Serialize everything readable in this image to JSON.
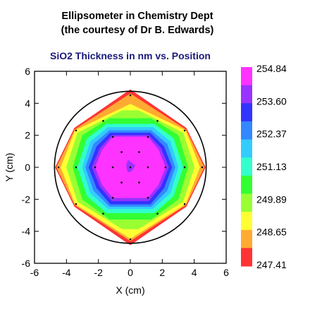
{
  "title_line1": "Ellipsometer in Chemistry Dept",
  "title_line2": "(the courtesy of Dr B. Edwards)",
  "subtitle": "SiO2 Thickness in nm vs. Position",
  "chart_data": {
    "type": "heatmap",
    "title": "Ellipsometer in Chemistry Dept (the courtesy of Dr B. Edwards)",
    "subtitle": "SiO2 Thickness in nm vs. Position",
    "xlabel": "X (cm)",
    "ylabel": "Y (cm)",
    "xlim": [
      -6,
      6
    ],
    "ylim": [
      -6,
      6
    ],
    "x_ticks": [
      "-6",
      "-4",
      "-2",
      "0",
      "2",
      "4",
      "6"
    ],
    "y_ticks": [
      "6",
      "4",
      "2",
      "0",
      "-2",
      "-4",
      "-6"
    ],
    "colorbar_ticks": [
      "254.84",
      "253.60",
      "252.37",
      "251.13",
      "249.89",
      "248.65",
      "247.41"
    ],
    "colorbar_colors": [
      "#ff33ff",
      "#9933ff",
      "#3333ff",
      "#3388ff",
      "#33ccff",
      "#33ffcc",
      "#33ff33",
      "#99ff33",
      "#ffff33",
      "#ffaa33",
      "#ff3333"
    ],
    "wafer_radius": 4.75,
    "measurement_points": [
      {
        "x": 0,
        "y": 0
      },
      {
        "x": 1.1,
        "y": 0
      },
      {
        "x": -1.1,
        "y": 0
      },
      {
        "x": 0.55,
        "y": 0.95
      },
      {
        "x": -0.55,
        "y": 0.95
      },
      {
        "x": 0.55,
        "y": -0.95
      },
      {
        "x": -0.55,
        "y": -0.95
      },
      {
        "x": 2.2,
        "y": 0
      },
      {
        "x": -2.2,
        "y": 0
      },
      {
        "x": 1.1,
        "y": 1.9
      },
      {
        "x": -1.1,
        "y": 1.9
      },
      {
        "x": 1.1,
        "y": -1.9
      },
      {
        "x": -1.1,
        "y": -1.9
      },
      {
        "x": 3.4,
        "y": 0
      },
      {
        "x": -3.4,
        "y": 0
      },
      {
        "x": 1.7,
        "y": 2.9
      },
      {
        "x": -1.7,
        "y": 2.9
      },
      {
        "x": 1.7,
        "y": -2.9
      },
      {
        "x": -1.7,
        "y": -2.9
      },
      {
        "x": 4.5,
        "y": 0
      },
      {
        "x": -4.5,
        "y": 0
      },
      {
        "x": 0,
        "y": 4.5
      },
      {
        "x": 0,
        "y": -4.5
      },
      {
        "x": 3.4,
        "y": 2.3
      },
      {
        "x": -3.4,
        "y": 2.3
      },
      {
        "x": 3.4,
        "y": -2.3
      },
      {
        "x": -3.4,
        "y": -2.3
      }
    ],
    "contour_bands": [
      {
        "color": "#ff3333",
        "polygon": [
          [
            -4.7,
            0
          ],
          [
            -3.5,
            2.45
          ],
          [
            -0.3,
            4.65
          ],
          [
            0,
            4.85
          ],
          [
            0.3,
            4.65
          ],
          [
            3.5,
            2.45
          ],
          [
            4.7,
            0
          ],
          [
            3.5,
            -2.45
          ],
          [
            0.3,
            -4.65
          ],
          [
            0,
            -4.85
          ],
          [
            -0.3,
            -4.65
          ],
          [
            -3.5,
            -2.45
          ]
        ]
      },
      {
        "color": "#ffaa33",
        "polygon": [
          [
            -4.62,
            0
          ],
          [
            -3.48,
            2.35
          ],
          [
            0,
            4.6
          ],
          [
            3.48,
            2.35
          ],
          [
            4.62,
            0
          ],
          [
            3.48,
            -2.35
          ],
          [
            0,
            -4.6
          ],
          [
            -3.48,
            -2.35
          ]
        ]
      },
      {
        "color": "#ffff33",
        "polygon": [
          [
            -4.35,
            0
          ],
          [
            -3.45,
            2.3
          ],
          [
            0,
            3.95
          ],
          [
            3.45,
            2.3
          ],
          [
            4.35,
            0
          ],
          [
            3.45,
            -2.3
          ],
          [
            0,
            -4.45
          ],
          [
            -3.45,
            -2.3
          ]
        ]
      },
      {
        "color": "#99ff33",
        "polygon": [
          [
            -4.0,
            0
          ],
          [
            -3.3,
            2.15
          ],
          [
            -0.5,
            3.55
          ],
          [
            0.5,
            3.55
          ],
          [
            3.3,
            2.15
          ],
          [
            4.0,
            0
          ],
          [
            3.3,
            -2.15
          ],
          [
            0.5,
            -3.85
          ],
          [
            -0.5,
            -3.85
          ],
          [
            -3.3,
            -2.15
          ]
        ]
      },
      {
        "color": "#33ff33",
        "polygon": [
          [
            -3.6,
            0
          ],
          [
            -3.0,
            2.0
          ],
          [
            -1.3,
            3.05
          ],
          [
            1.3,
            3.05
          ],
          [
            3.0,
            2.0
          ],
          [
            3.6,
            0
          ],
          [
            3.0,
            -2.0
          ],
          [
            1.3,
            -3.25
          ],
          [
            -1.3,
            -3.25
          ],
          [
            -3.0,
            -2.0
          ]
        ]
      },
      {
        "color": "#33ffcc",
        "polygon": [
          [
            -3.3,
            0
          ],
          [
            -2.7,
            1.8
          ],
          [
            -1.5,
            2.7
          ],
          [
            1.5,
            2.7
          ],
          [
            2.7,
            1.8
          ],
          [
            3.3,
            0
          ],
          [
            2.7,
            -1.8
          ],
          [
            1.5,
            -2.85
          ],
          [
            -1.5,
            -2.85
          ],
          [
            -2.7,
            -1.8
          ]
        ]
      },
      {
        "color": "#33ccff",
        "polygon": [
          [
            -3.0,
            0
          ],
          [
            -2.5,
            1.6
          ],
          [
            -1.4,
            2.5
          ],
          [
            1.4,
            2.5
          ],
          [
            2.5,
            1.6
          ],
          [
            3.0,
            0
          ],
          [
            2.5,
            -1.6
          ],
          [
            1.4,
            -2.6
          ],
          [
            -1.4,
            -2.6
          ],
          [
            -2.5,
            -1.6
          ]
        ]
      },
      {
        "color": "#3388ff",
        "polygon": [
          [
            -2.8,
            0
          ],
          [
            -2.3,
            1.45
          ],
          [
            -1.3,
            2.3
          ],
          [
            1.3,
            2.3
          ],
          [
            2.3,
            1.45
          ],
          [
            2.8,
            0
          ],
          [
            2.3,
            -1.45
          ],
          [
            1.3,
            -2.45
          ],
          [
            -1.3,
            -2.45
          ],
          [
            -2.3,
            -1.45
          ]
        ]
      },
      {
        "color": "#3333ff",
        "polygon": [
          [
            -2.6,
            0
          ],
          [
            -2.1,
            1.3
          ],
          [
            -1.25,
            2.15
          ],
          [
            1.25,
            2.15
          ],
          [
            2.1,
            1.3
          ],
          [
            2.6,
            0
          ],
          [
            2.1,
            -1.3
          ],
          [
            1.25,
            -2.3
          ],
          [
            -1.25,
            -2.3
          ],
          [
            -2.1,
            -1.3
          ]
        ]
      },
      {
        "color": "#9933ff",
        "polygon": [
          [
            -2.4,
            0
          ],
          [
            -1.9,
            1.2
          ],
          [
            -1.15,
            2.0
          ],
          [
            1.15,
            2.0
          ],
          [
            1.9,
            1.2
          ],
          [
            2.4,
            0
          ],
          [
            1.9,
            -1.2
          ],
          [
            1.15,
            -2.1
          ],
          [
            -1.15,
            -2.1
          ],
          [
            -1.9,
            -1.2
          ]
        ]
      },
      {
        "color": "#ff33ff",
        "polygon": [
          [
            -2.2,
            0
          ],
          [
            -1.75,
            1.1
          ],
          [
            -1.1,
            1.9
          ],
          [
            1.1,
            1.9
          ],
          [
            1.75,
            1.1
          ],
          [
            2.2,
            0
          ],
          [
            1.75,
            -1.1
          ],
          [
            1.1,
            -1.9
          ],
          [
            -1.1,
            -1.9
          ],
          [
            -1.75,
            -1.1
          ]
        ]
      },
      {
        "color": "#9933ff",
        "polygon": [
          [
            -0.15,
            0.45
          ],
          [
            0.3,
            0.1
          ],
          [
            0.05,
            -0.25
          ],
          [
            -0.15,
            -0.3
          ],
          [
            -0.25,
            0.1
          ]
        ]
      }
    ]
  }
}
